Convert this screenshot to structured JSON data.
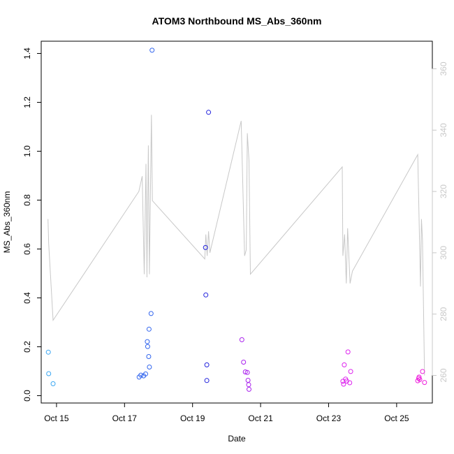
{
  "chart_data": {
    "type": "scatter",
    "title": "ATOM3 Northbound MS_Abs_360nm",
    "xlabel": "Date",
    "ylabel": "MS_Abs_360nm",
    "xlim": [
      14.55,
      26.05
    ],
    "ylim": [
      -0.03,
      1.45
    ],
    "y2lim": [
      251,
      369
    ],
    "x_ticks": [
      {
        "value": 15,
        "label": "Oct 15"
      },
      {
        "value": 17,
        "label": "Oct 17"
      },
      {
        "value": 19,
        "label": "Oct 19"
      },
      {
        "value": 21,
        "label": "Oct 21"
      },
      {
        "value": 23,
        "label": "Oct 23"
      },
      {
        "value": 25,
        "label": "Oct 25"
      }
    ],
    "y_ticks": [
      {
        "value": 0.0,
        "label": "0.0"
      },
      {
        "value": 0.2,
        "label": "0.2"
      },
      {
        "value": 0.4,
        "label": "0.4"
      },
      {
        "value": 0.6,
        "label": "0.6"
      },
      {
        "value": 0.8,
        "label": "0.8"
      },
      {
        "value": 1.0,
        "label": "1.0"
      },
      {
        "value": 1.2,
        "label": "1.2"
      },
      {
        "value": 1.4,
        "label": "1.4"
      }
    ],
    "y2_ticks": [
      {
        "value": 260,
        "label": "260"
      },
      {
        "value": 280,
        "label": "280"
      },
      {
        "value": 300,
        "label": "300"
      },
      {
        "value": 320,
        "label": "320"
      },
      {
        "value": 340,
        "label": "340"
      },
      {
        "value": 360,
        "label": "360"
      }
    ],
    "line_color": "#c8c8c8",
    "points": [
      {
        "x": 14.76,
        "y": 0.178,
        "color": "#3aa6f2"
      },
      {
        "x": 14.77,
        "y": 0.09,
        "color": "#3aa6f2"
      },
      {
        "x": 14.9,
        "y": 0.049,
        "color": "#3aa6f2"
      },
      {
        "x": 17.43,
        "y": 0.076,
        "color": "#3366ee"
      },
      {
        "x": 17.48,
        "y": 0.084,
        "color": "#3366ee"
      },
      {
        "x": 17.56,
        "y": 0.081,
        "color": "#3366ee"
      },
      {
        "x": 17.62,
        "y": 0.089,
        "color": "#3366ee"
      },
      {
        "x": 17.67,
        "y": 0.221,
        "color": "#3366ee"
      },
      {
        "x": 17.68,
        "y": 0.201,
        "color": "#3366ee"
      },
      {
        "x": 17.71,
        "y": 0.16,
        "color": "#3366ee"
      },
      {
        "x": 17.72,
        "y": 0.272,
        "color": "#3366ee"
      },
      {
        "x": 17.73,
        "y": 0.117,
        "color": "#3366ee"
      },
      {
        "x": 17.78,
        "y": 0.336,
        "color": "#3366ee"
      },
      {
        "x": 17.81,
        "y": 1.413,
        "color": "#3366ee"
      },
      {
        "x": 19.38,
        "y": 0.606,
        "color": "#2222dd"
      },
      {
        "x": 19.39,
        "y": 0.412,
        "color": "#2222dd"
      },
      {
        "x": 19.42,
        "y": 0.126,
        "color": "#2222dd"
      },
      {
        "x": 19.42,
        "y": 0.062,
        "color": "#2222dd"
      },
      {
        "x": 19.47,
        "y": 1.159,
        "color": "#2222dd"
      },
      {
        "x": 20.45,
        "y": 0.229,
        "color": "#aa22ee"
      },
      {
        "x": 20.5,
        "y": 0.137,
        "color": "#aa22ee"
      },
      {
        "x": 20.55,
        "y": 0.097,
        "color": "#aa22ee"
      },
      {
        "x": 20.61,
        "y": 0.095,
        "color": "#aa22ee"
      },
      {
        "x": 20.63,
        "y": 0.063,
        "color": "#aa22ee"
      },
      {
        "x": 20.65,
        "y": 0.045,
        "color": "#aa22ee"
      },
      {
        "x": 20.66,
        "y": 0.026,
        "color": "#aa22ee"
      },
      {
        "x": 23.42,
        "y": 0.059,
        "color": "#dd22ee"
      },
      {
        "x": 23.44,
        "y": 0.047,
        "color": "#dd22ee"
      },
      {
        "x": 23.46,
        "y": 0.126,
        "color": "#dd22ee"
      },
      {
        "x": 23.5,
        "y": 0.068,
        "color": "#dd22ee"
      },
      {
        "x": 23.53,
        "y": 0.06,
        "color": "#dd22ee"
      },
      {
        "x": 23.57,
        "y": 0.179,
        "color": "#dd22ee"
      },
      {
        "x": 23.62,
        "y": 0.053,
        "color": "#dd22ee"
      },
      {
        "x": 23.65,
        "y": 0.099,
        "color": "#dd22ee"
      },
      {
        "x": 25.62,
        "y": 0.061,
        "color": "#ee22dd"
      },
      {
        "x": 25.65,
        "y": 0.071,
        "color": "#ee22dd"
      },
      {
        "x": 25.66,
        "y": 0.076,
        "color": "#ee22dd"
      },
      {
        "x": 25.68,
        "y": 0.066,
        "color": "#ee22dd"
      },
      {
        "x": 25.76,
        "y": 0.099,
        "color": "#ee22dd"
      },
      {
        "x": 25.82,
        "y": 0.054,
        "color": "#ee22dd"
      }
    ],
    "secondary_line": [
      [
        14.75,
        311
      ],
      [
        14.77,
        303
      ],
      [
        14.9,
        278
      ],
      [
        17.42,
        320
      ],
      [
        17.52,
        325
      ],
      [
        17.58,
        293
      ],
      [
        17.63,
        329
      ],
      [
        17.66,
        292
      ],
      [
        17.7,
        335
      ],
      [
        17.73,
        293
      ],
      [
        17.79,
        345
      ],
      [
        17.82,
        317
      ],
      [
        19.36,
        298
      ],
      [
        19.39,
        306
      ],
      [
        19.43,
        299
      ],
      [
        19.47,
        307
      ],
      [
        19.51,
        300
      ],
      [
        20.43,
        343
      ],
      [
        20.53,
        299
      ],
      [
        20.58,
        301
      ],
      [
        20.61,
        339
      ],
      [
        20.66,
        330
      ],
      [
        20.7,
        293
      ],
      [
        23.4,
        328
      ],
      [
        23.42,
        299
      ],
      [
        23.47,
        306
      ],
      [
        23.52,
        290
      ],
      [
        23.56,
        308
      ],
      [
        23.63,
        290
      ],
      [
        23.7,
        294
      ],
      [
        25.62,
        332
      ],
      [
        25.7,
        289
      ],
      [
        25.73,
        311
      ],
      [
        25.76,
        304
      ],
      [
        25.82,
        260
      ]
    ]
  }
}
